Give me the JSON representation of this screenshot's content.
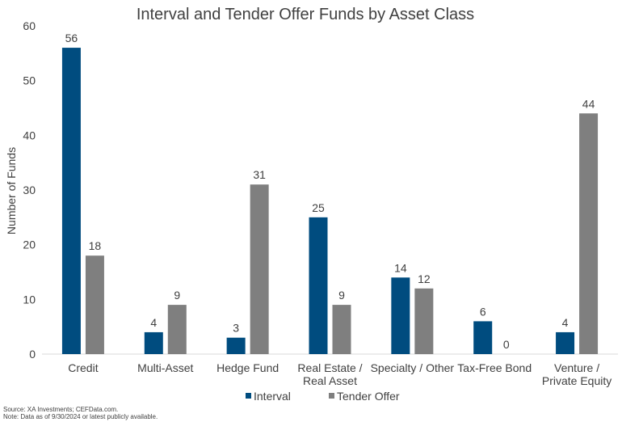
{
  "chart_data": {
    "type": "bar",
    "title": "Interval and Tender Offer Funds by Asset Class",
    "xlabel": "",
    "ylabel": "Number of Funds",
    "ylim": [
      0,
      60
    ],
    "yticks": [
      0,
      10,
      20,
      30,
      40,
      50,
      60
    ],
    "grid": false,
    "legend_position": "bottom",
    "categories": [
      [
        "Credit"
      ],
      [
        "Multi-Asset"
      ],
      [
        "Hedge Fund"
      ],
      [
        "Real Estate /",
        "Real Asset"
      ],
      [
        "Specialty / Other"
      ],
      [
        "Tax-Free Bond"
      ],
      [
        "Venture /",
        "Private Equity"
      ]
    ],
    "series": [
      {
        "name": "Interval",
        "color": "#004C7F",
        "values": [
          56,
          4,
          3,
          25,
          14,
          6,
          4
        ]
      },
      {
        "name": "Tender Offer",
        "color": "#7F7F7F",
        "values": [
          18,
          9,
          31,
          9,
          12,
          0,
          44
        ]
      }
    ]
  },
  "footer": {
    "source": "Source: XA Investments; CEFData.com.",
    "note": "Note: Data as of 9/30/2024 or latest publicly available."
  }
}
